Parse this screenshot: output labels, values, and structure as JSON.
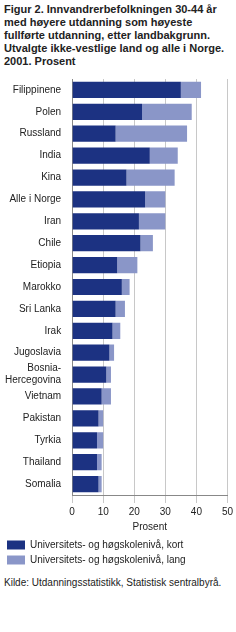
{
  "chart_data": {
    "type": "bar",
    "orientation": "horizontal",
    "stacked": true,
    "title": "Figur 2. Innvandrerbefolkningen 30-44 år med høyere utdanning som høyeste fullførte utdanning, etter landbakgrunn. Utvalgte ikke-vestlige land og alle i Norge. 2001. Prosent",
    "x_label": "Prosent",
    "source": "Kilde: Utdanningsstatistikk, Statistisk sentralbyrå.",
    "categories": [
      "Filippinene",
      "Polen",
      "Russland",
      "India",
      "Kina",
      "Alle i Norge",
      "Iran",
      "Chile",
      "Etiopia",
      "Marokko",
      "Sri Lanka",
      "Irak",
      "Jugoslavia",
      "Bosnia-Hercegovina",
      "Vietnam",
      "Pakistan",
      "Tyrkia",
      "Thailand",
      "Somalia"
    ],
    "series": [
      {
        "name": "Universitets- og høgskolenivå, kort",
        "color": "#1c3282",
        "values": [
          35,
          22.5,
          14,
          25,
          17.5,
          23.5,
          21.5,
          22,
          14.5,
          16,
          14,
          13,
          12,
          11,
          9.5,
          8.5,
          8,
          8,
          8.5
        ]
      },
      {
        "name": "Universitets- og høgskolenivå, lang",
        "color": "#8a96c8",
        "values": [
          6.5,
          16,
          23,
          9,
          15.5,
          6.5,
          8.5,
          4,
          6.5,
          2.5,
          3,
          2.5,
          1.5,
          1.5,
          3,
          1.5,
          2,
          1.5,
          1
        ]
      }
    ],
    "xlim": [
      0,
      50
    ],
    "xticks": [
      0,
      10,
      20,
      30,
      40,
      50
    ],
    "grid": true,
    "legend": "bottom"
  }
}
